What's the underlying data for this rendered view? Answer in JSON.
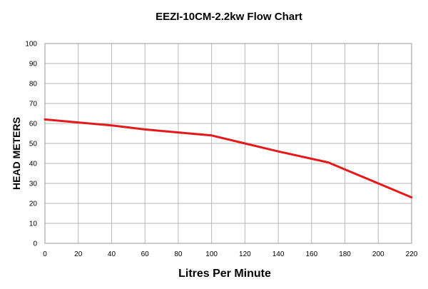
{
  "chart_data": {
    "type": "line",
    "title": "EEZI-10CM-2.2kw Flow Chart",
    "xlabel": "Litres Per Minute",
    "ylabel": "HEAD METERS",
    "xlim": [
      0,
      220
    ],
    "ylim": [
      0,
      100
    ],
    "x_ticks": [
      0,
      20,
      40,
      60,
      80,
      100,
      120,
      140,
      160,
      180,
      200,
      220
    ],
    "y_ticks": [
      0,
      10,
      20,
      30,
      40,
      50,
      60,
      70,
      80,
      90,
      100
    ],
    "grid": true,
    "legend": "none",
    "series": [
      {
        "color": "#e31a1c",
        "x": [
          0,
          20,
          40,
          60,
          80,
          100,
          120,
          140,
          170,
          200,
          220
        ],
        "y": [
          62,
          60.5,
          59,
          57,
          55.5,
          54,
          50,
          46,
          40.5,
          30,
          23
        ]
      }
    ]
  }
}
